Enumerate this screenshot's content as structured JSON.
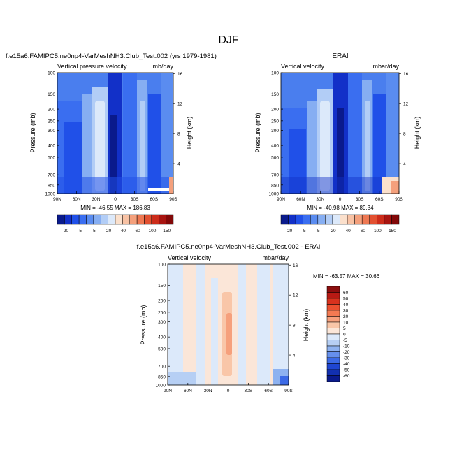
{
  "figure": {
    "title": "DJF"
  },
  "panels": {
    "model": {
      "title": "f.e15a6.FAMIPC5.ne0np4-VarMeshNH3.Club_Test.002 (yrs 1979-1981)",
      "left_label": "Vertical pressure velocity",
      "right_label": "mb/day",
      "minmax": "MIN = -46.55  MAX = 186.83"
    },
    "obs": {
      "title": "ERAI",
      "left_label": "Vertical velocity",
      "right_label": "mbar/day",
      "minmax": "MIN = -40.98  MAX = 89.34"
    },
    "diff": {
      "title": "f.e15a6.FAMIPC5.ne0np4-VarMeshNH3.Club_Test.002 - ERAI",
      "left_label": "Vertical velocity",
      "right_label": "mbar/day",
      "minmax": "MIN = -63.57  MAX = 30.66"
    }
  },
  "axes": {
    "ylabel": "Pressure (mb)",
    "y2label": "Height (km)",
    "x_ticks": [
      "90N",
      "60N",
      "30N",
      "0",
      "30S",
      "60S",
      "90S"
    ],
    "y_ticks": [
      "100",
      "150",
      "200",
      "250",
      "300",
      "400",
      "500",
      "700",
      "850",
      "1000"
    ],
    "y_tick_values": [
      100,
      150,
      200,
      250,
      300,
      400,
      500,
      700,
      850,
      1000
    ],
    "y2_ticks": [
      "4",
      "8",
      "12",
      "16"
    ],
    "y2_tick_values": [
      4,
      8,
      12,
      16
    ]
  },
  "colorbars": {
    "main_labels": [
      "-20",
      "-5",
      "5",
      "20",
      "40",
      "60",
      "100",
      "150"
    ],
    "main_colors": [
      "#0a1a8c",
      "#1230c8",
      "#2050e8",
      "#3a6ef0",
      "#5a8cf0",
      "#86aef2",
      "#b2cdf6",
      "#dce9fa",
      "#fbe0cc",
      "#f8c2a4",
      "#f4a07c",
      "#ee7852",
      "#e25030",
      "#cc2c1a",
      "#a81410",
      "#820808"
    ],
    "diff_labels": [
      "60",
      "50",
      "40",
      "30",
      "20",
      "10",
      "5",
      "0",
      "-5",
      "-10",
      "-20",
      "-30",
      "-40",
      "-50",
      "-60"
    ],
    "diff_colors": [
      "#8c0e0e",
      "#b81a14",
      "#d9321e",
      "#ec5030",
      "#f37a52",
      "#f6a07c",
      "#f9c6a8",
      "#fbe6d8",
      "#dce9fa",
      "#b6cff4",
      "#8eb2f0",
      "#6690ec",
      "#3c6ae6",
      "#1f46d2",
      "#1230b0",
      "#0a1a8c"
    ]
  },
  "chart_data": [
    {
      "type": "heatmap",
      "title": "f.e15a6.FAMIPC5.ne0np4-VarMeshNH3.Club_Test.002 (yrs 1979-1981)",
      "subtitle_left": "Vertical pressure velocity",
      "subtitle_right": "mb/day",
      "xlabel": "",
      "ylabel": "Pressure (mb)",
      "y2label": "Height (km)",
      "x_categories": [
        "90N",
        "60N",
        "30N",
        "0",
        "30S",
        "60S",
        "90S"
      ],
      "ylim": [
        1000,
        100
      ],
      "min": -46.55,
      "max": 186.83,
      "colorbar_levels": [
        -20,
        -5,
        5,
        20,
        40,
        60,
        100,
        150
      ],
      "columns": [
        {
          "lat": "90N",
          "value": -12
        },
        {
          "lat": "75N",
          "value": -18
        },
        {
          "lat": "60N",
          "value": -22
        },
        {
          "lat": "45N",
          "value": -10
        },
        {
          "lat": "30N",
          "value": 3
        },
        {
          "lat": "20N",
          "value": 6
        },
        {
          "lat": "10N",
          "value": -4
        },
        {
          "lat": "5N",
          "value": -28
        },
        {
          "lat": "0",
          "value": -35
        },
        {
          "lat": "10S",
          "value": -22
        },
        {
          "lat": "20S",
          "value": 2
        },
        {
          "lat": "30S",
          "value": 4
        },
        {
          "lat": "45S",
          "value": -14
        },
        {
          "lat": "60S",
          "value": -20
        },
        {
          "lat": "75S",
          "value": -8
        },
        {
          "lat": "90S",
          "value": 30
        }
      ]
    },
    {
      "type": "heatmap",
      "title": "ERAI",
      "subtitle_left": "Vertical velocity",
      "subtitle_right": "mbar/day",
      "xlabel": "",
      "ylabel": "Pressure (mb)",
      "y2label": "Height (km)",
      "x_categories": [
        "90N",
        "60N",
        "30N",
        "0",
        "30S",
        "60S",
        "90S"
      ],
      "ylim": [
        1000,
        100
      ],
      "min": -40.98,
      "max": 89.34,
      "colorbar_levels": [
        -20,
        -5,
        5,
        20,
        40,
        60,
        100,
        150
      ],
      "columns": [
        {
          "lat": "90N",
          "value": -10
        },
        {
          "lat": "75N",
          "value": -16
        },
        {
          "lat": "60N",
          "value": -24
        },
        {
          "lat": "45N",
          "value": -12
        },
        {
          "lat": "30N",
          "value": 2
        },
        {
          "lat": "20N",
          "value": 5
        },
        {
          "lat": "10N",
          "value": -6
        },
        {
          "lat": "5N",
          "value": -30
        },
        {
          "lat": "0",
          "value": -32
        },
        {
          "lat": "10S",
          "value": -20
        },
        {
          "lat": "20S",
          "value": 1
        },
        {
          "lat": "30S",
          "value": 3
        },
        {
          "lat": "45S",
          "value": -12
        },
        {
          "lat": "60S",
          "value": -18
        },
        {
          "lat": "75S",
          "value": -4
        },
        {
          "lat": "90S",
          "value": 40
        }
      ]
    },
    {
      "type": "heatmap",
      "title": "f.e15a6.FAMIPC5.ne0np4-VarMeshNH3.Club_Test.002 - ERAI",
      "subtitle_left": "Vertical velocity",
      "subtitle_right": "mbar/day",
      "xlabel": "",
      "ylabel": "Pressure (mb)",
      "y2label": "Height (km)",
      "x_categories": [
        "90N",
        "60N",
        "30N",
        "0",
        "30S",
        "60S",
        "90S"
      ],
      "ylim": [
        1000,
        100
      ],
      "min": -63.57,
      "max": 30.66,
      "colorbar_levels": [
        60,
        50,
        40,
        30,
        20,
        10,
        5,
        0,
        -5,
        -10,
        -20,
        -30,
        -40,
        -50,
        -60
      ],
      "columns": [
        {
          "lat": "90N",
          "value": -3
        },
        {
          "lat": "75N",
          "value": -2
        },
        {
          "lat": "60N",
          "value": 2
        },
        {
          "lat": "45N",
          "value": 1
        },
        {
          "lat": "30N",
          "value": -3
        },
        {
          "lat": "20N",
          "value": 2
        },
        {
          "lat": "10N",
          "value": 4
        },
        {
          "lat": "5N",
          "value": 3
        },
        {
          "lat": "0",
          "value": 8
        },
        {
          "lat": "10S",
          "value": 3
        },
        {
          "lat": "20S",
          "value": -3
        },
        {
          "lat": "30S",
          "value": 2
        },
        {
          "lat": "45S",
          "value": -2
        },
        {
          "lat": "60S",
          "value": -4
        },
        {
          "lat": "75S",
          "value": -3
        },
        {
          "lat": "90S",
          "value": -12
        }
      ]
    }
  ]
}
